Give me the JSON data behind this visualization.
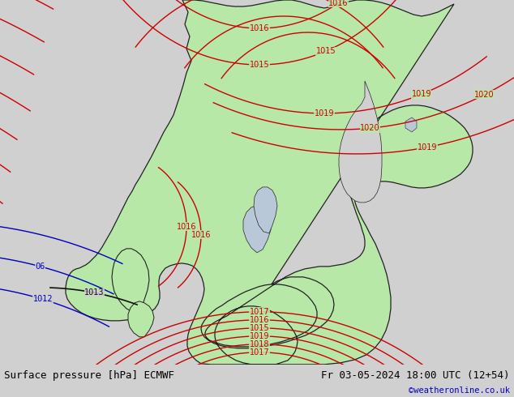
{
  "title_left": "Surface pressure [hPa] ECMWF",
  "title_right": "Fr 03-05-2024 18:00 UTC (12+54)",
  "watermark": "©weatheronline.co.uk",
  "bg_color": "#d0d0d0",
  "land_color": "#b8e8a8",
  "sea_color": "#d0d0d0",
  "border_color": "#222222",
  "red_color": "#cc0000",
  "blue_color": "#0000bb",
  "black_color": "#111111",
  "footer_bg": "#e8e8e8",
  "watermark_color": "#0000cc",
  "label_fs": 7,
  "footer_fs": 9,
  "fig_w": 6.34,
  "fig_h": 4.9,
  "dpi": 100
}
